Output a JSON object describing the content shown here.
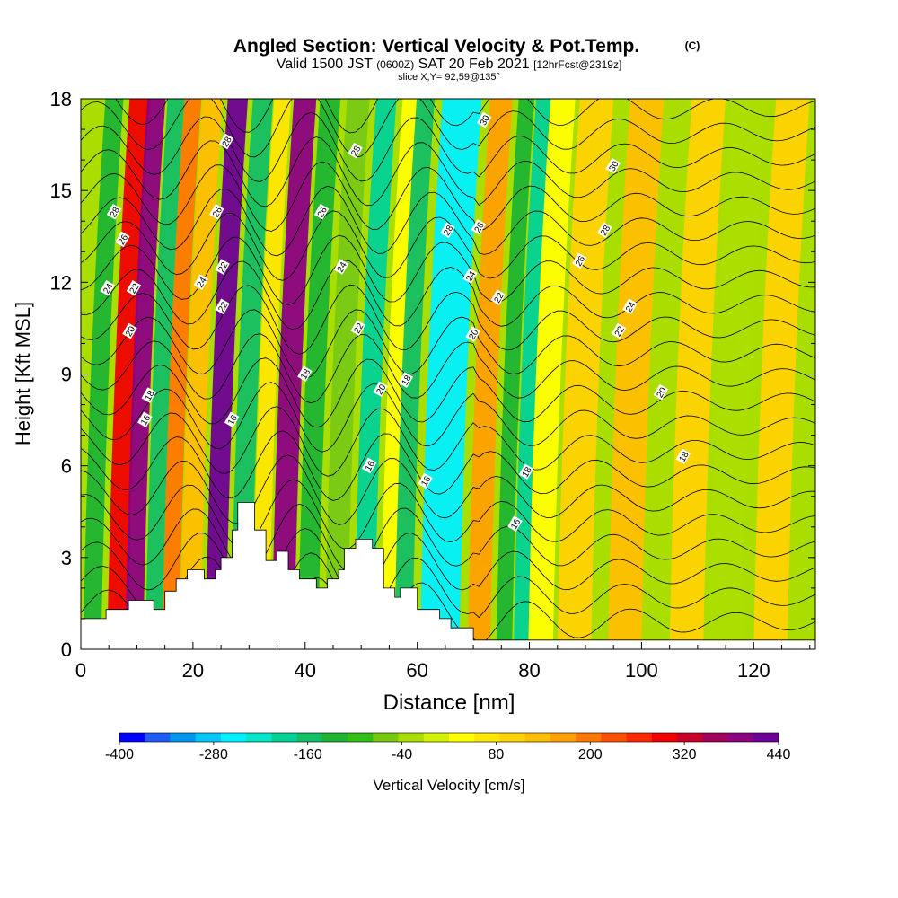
{
  "chart_data": {
    "type": "heatmap",
    "title": "Angled Section: Vertical Velocity & Pot.Temp.",
    "title_unit": "(C)",
    "subtitle": {
      "part1": "Valid 1500 JST",
      "part2": "(0600Z)",
      "part3": "SAT 20 Feb 2021",
      "part4": "[12hrFcst@2319z]"
    },
    "slice_label": "slice X,Y= 92,59@135°",
    "xlabel": "Distance [nm]",
    "ylabel": "Height [Kft MSL]",
    "xlim": [
      0,
      131
    ],
    "ylim": [
      0,
      18
    ],
    "x_ticks": [
      "0",
      "20",
      "40",
      "60",
      "80",
      "100",
      "120"
    ],
    "y_ticks": [
      "0",
      "3",
      "6",
      "9",
      "12",
      "15",
      "18"
    ],
    "colorbar": {
      "label": "Vertical Velocity [cm/s]",
      "tick_labels": [
        "-400",
        "-280",
        "-160",
        "-40",
        "80",
        "200",
        "320",
        "440"
      ],
      "min": -400,
      "max": 440,
      "colors": [
        "#0000ff",
        "#1e5cf5",
        "#0096f0",
        "#00c8f5",
        "#00f0ff",
        "#00e6c8",
        "#00d296",
        "#14be64",
        "#1eb432",
        "#32be14",
        "#78c814",
        "#aade00",
        "#d2f000",
        "#ffff00",
        "#ffe600",
        "#ffd200",
        "#ffbe00",
        "#ffa000",
        "#ff7800",
        "#ff5000",
        "#ff2800",
        "#f00000",
        "#c80028",
        "#a0005a",
        "#8c0082",
        "#6e0096"
      ]
    },
    "wave_columns": [
      {
        "x": 2,
        "w": 1.6,
        "value": -140
      },
      {
        "x": 6.5,
        "w": 1.8,
        "value": 280
      },
      {
        "x": 9.5,
        "w": 1.6,
        "value": 400
      },
      {
        "x": 13,
        "w": 1.5,
        "value": -160
      },
      {
        "x": 16,
        "w": 1.5,
        "value": 200
      },
      {
        "x": 19.5,
        "w": 1.8,
        "value": 140
      },
      {
        "x": 24,
        "w": 1.8,
        "value": 420
      },
      {
        "x": 28.5,
        "w": 1.8,
        "value": -160
      },
      {
        "x": 32,
        "w": 1.5,
        "value": 60
      },
      {
        "x": 36,
        "w": 2,
        "value": 400
      },
      {
        "x": 40.5,
        "w": 1.8,
        "value": -140
      },
      {
        "x": 45.5,
        "w": 2,
        "value": -60
      },
      {
        "x": 50.5,
        "w": 1.8,
        "value": -180
      },
      {
        "x": 55,
        "w": 1.6,
        "value": 40
      },
      {
        "x": 57.5,
        "w": 1.6,
        "value": -160
      },
      {
        "x": 64,
        "w": 3.5,
        "value": -250
      },
      {
        "x": 71,
        "w": 2,
        "value": 160
      },
      {
        "x": 75.5,
        "w": 1.4,
        "value": -140
      },
      {
        "x": 78.5,
        "w": 1.3,
        "value": -180
      },
      {
        "x": 82,
        "w": 2.2,
        "value": 30
      },
      {
        "x": 88,
        "w": 3,
        "value": 100
      },
      {
        "x": 97,
        "w": 3,
        "value": 120
      },
      {
        "x": 108,
        "w": 3,
        "value": 100
      },
      {
        "x": 115,
        "w": 3,
        "value": -20
      },
      {
        "x": 123,
        "w": 3,
        "value": 100
      }
    ],
    "terrain": [
      [
        0,
        1.0
      ],
      [
        4.5,
        1.0
      ],
      [
        4.5,
        1.3
      ],
      [
        8.5,
        1.3
      ],
      [
        8.5,
        1.6
      ],
      [
        13,
        1.6
      ],
      [
        13,
        1.3
      ],
      [
        15,
        1.3
      ],
      [
        15,
        1.9
      ],
      [
        17,
        1.9
      ],
      [
        17,
        2.3
      ],
      [
        19,
        2.3
      ],
      [
        19,
        2.6
      ],
      [
        22,
        2.6
      ],
      [
        22,
        2.3
      ],
      [
        24,
        2.3
      ],
      [
        24,
        2.6
      ],
      [
        25,
        2.6
      ],
      [
        25,
        3.0
      ],
      [
        27,
        3.0
      ],
      [
        27,
        3.9
      ],
      [
        28,
        3.9
      ],
      [
        28,
        4.8
      ],
      [
        31,
        4.8
      ],
      [
        31,
        3.9
      ],
      [
        33,
        3.9
      ],
      [
        33,
        2.9
      ],
      [
        35,
        2.9
      ],
      [
        35,
        3.2
      ],
      [
        37,
        3.2
      ],
      [
        37,
        2.6
      ],
      [
        39,
        2.6
      ],
      [
        39,
        2.3
      ],
      [
        42,
        2.3
      ],
      [
        42,
        2.0
      ],
      [
        44,
        2.0
      ],
      [
        44,
        2.3
      ],
      [
        46,
        2.3
      ],
      [
        46,
        2.6
      ],
      [
        47,
        2.6
      ],
      [
        47,
        3.3
      ],
      [
        49,
        3.3
      ],
      [
        49,
        3.6
      ],
      [
        52,
        3.6
      ],
      [
        52,
        3.3
      ],
      [
        54,
        3.3
      ],
      [
        54,
        2.0
      ],
      [
        56,
        2.0
      ],
      [
        56,
        1.7
      ],
      [
        57,
        1.7
      ],
      [
        57,
        2.0
      ],
      [
        60,
        2.0
      ],
      [
        60,
        1.3
      ],
      [
        64,
        1.3
      ],
      [
        64,
        1.0
      ],
      [
        66,
        1.0
      ],
      [
        66,
        0.7
      ],
      [
        70,
        0.7
      ],
      [
        70,
        0.3
      ],
      [
        131,
        0.3
      ],
      [
        131,
        0
      ],
      [
        0,
        0
      ]
    ],
    "contour_labels": [
      {
        "text": "28",
        "x": 6,
        "y": 14.3
      },
      {
        "text": "26",
        "x": 7.5,
        "y": 13.4
      },
      {
        "text": "24",
        "x": 4.8,
        "y": 11.8
      },
      {
        "text": "22",
        "x": 9.5,
        "y": 11.8
      },
      {
        "text": "20",
        "x": 8.8,
        "y": 10.4
      },
      {
        "text": "18",
        "x": 12.2,
        "y": 8.3
      },
      {
        "text": "16",
        "x": 11.5,
        "y": 7.5
      },
      {
        "text": "28",
        "x": 26,
        "y": 16.6
      },
      {
        "text": "26",
        "x": 24.3,
        "y": 14.3
      },
      {
        "text": "24",
        "x": 21.5,
        "y": 12.0
      },
      {
        "text": "22",
        "x": 25.3,
        "y": 12.5
      },
      {
        "text": "22",
        "x": 25.3,
        "y": 11.2
      },
      {
        "text": "16",
        "x": 27,
        "y": 7.5
      },
      {
        "text": "28",
        "x": 49,
        "y": 16.3
      },
      {
        "text": "26",
        "x": 43,
        "y": 14.3
      },
      {
        "text": "24",
        "x": 46.5,
        "y": 12.5
      },
      {
        "text": "22",
        "x": 49.5,
        "y": 10.5
      },
      {
        "text": "18",
        "x": 40,
        "y": 9.0
      },
      {
        "text": "20",
        "x": 53.5,
        "y": 8.5
      },
      {
        "text": "18",
        "x": 58,
        "y": 8.8
      },
      {
        "text": "16",
        "x": 51.5,
        "y": 6.0
      },
      {
        "text": "16",
        "x": 61.5,
        "y": 5.5
      },
      {
        "text": "28",
        "x": 65.5,
        "y": 13.7
      },
      {
        "text": "26",
        "x": 71,
        "y": 13.8
      },
      {
        "text": "30",
        "x": 72,
        "y": 17.3
      },
      {
        "text": "24",
        "x": 69.5,
        "y": 12.2
      },
      {
        "text": "22",
        "x": 74.5,
        "y": 11.5
      },
      {
        "text": "20",
        "x": 70,
        "y": 10.3
      },
      {
        "text": "18",
        "x": 79.5,
        "y": 5.8
      },
      {
        "text": "16",
        "x": 77.5,
        "y": 4.1
      },
      {
        "text": "30",
        "x": 95,
        "y": 15.8
      },
      {
        "text": "28",
        "x": 93.5,
        "y": 13.7
      },
      {
        "text": "26",
        "x": 89,
        "y": 12.7
      },
      {
        "text": "24",
        "x": 98,
        "y": 11.2
      },
      {
        "text": "22",
        "x": 96,
        "y": 10.4
      },
      {
        "text": "20",
        "x": 103.5,
        "y": 8.4
      },
      {
        "text": "18",
        "x": 107.5,
        "y": 6.3
      }
    ]
  }
}
